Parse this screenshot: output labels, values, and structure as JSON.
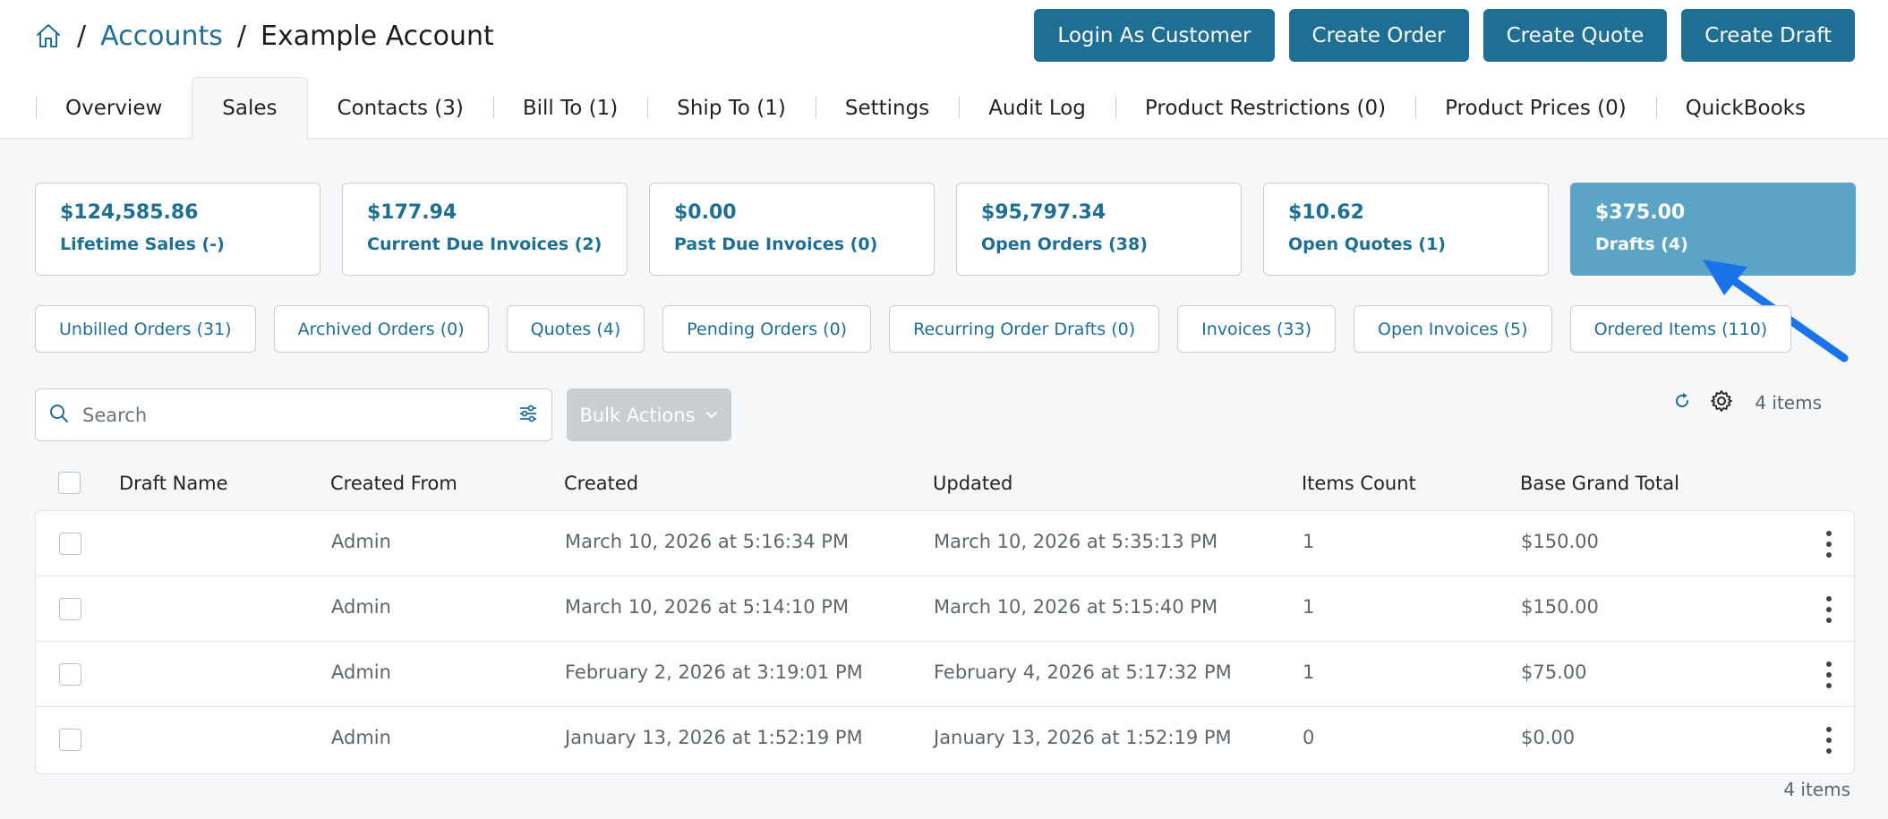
{
  "breadcrumb": {
    "home_icon": "home-icon",
    "accounts": "Accounts",
    "separator": "/",
    "current": "Example Account"
  },
  "actions": {
    "login": "Login As Customer",
    "create_order": "Create Order",
    "create_quote": "Create Quote",
    "create_draft": "Create Draft"
  },
  "tabs": [
    {
      "label": "Overview"
    },
    {
      "label": "Sales"
    },
    {
      "label": "Contacts (3)"
    },
    {
      "label": "Bill To (1)"
    },
    {
      "label": "Ship To (1)"
    },
    {
      "label": "Settings"
    },
    {
      "label": "Audit Log"
    },
    {
      "label": "Product Restrictions (0)"
    },
    {
      "label": "Product Prices (0)"
    },
    {
      "label": "QuickBooks"
    }
  ],
  "active_tab": "Sales",
  "stats": [
    {
      "amount": "$124,585.86",
      "label": "Lifetime Sales (-)"
    },
    {
      "amount": "$177.94",
      "label": "Current Due Invoices (2)"
    },
    {
      "amount": "$0.00",
      "label": "Past Due Invoices (0)"
    },
    {
      "amount": "$95,797.34",
      "label": "Open Orders (38)"
    },
    {
      "amount": "$10.62",
      "label": "Open Quotes (1)"
    },
    {
      "amount": "$375.00",
      "label": "Drafts (4)"
    }
  ],
  "active_stat": "Drafts (4)",
  "subtabs": [
    {
      "label": "Unbilled Orders (31)"
    },
    {
      "label": "Archived Orders (0)"
    },
    {
      "label": "Quotes (4)"
    },
    {
      "label": "Pending Orders (0)"
    },
    {
      "label": "Recurring Order Drafts (0)"
    },
    {
      "label": "Invoices (33)"
    },
    {
      "label": "Open Invoices (5)"
    },
    {
      "label": "Ordered Items (110)"
    }
  ],
  "toolbar": {
    "search_placeholder": "Search",
    "bulk_actions": "Bulk Actions",
    "item_count": "4 items"
  },
  "table": {
    "columns": [
      "Draft Name",
      "Created From",
      "Created",
      "Updated",
      "Items Count",
      "Base Grand Total"
    ],
    "rows": [
      {
        "draft_name": "",
        "created_from": "Admin",
        "created": "March 10, 2026 at 5:16:34 PM",
        "updated": "March 10, 2026 at 5:35:13 PM",
        "items_count": "1",
        "total": "$150.00"
      },
      {
        "draft_name": "",
        "created_from": "Admin",
        "created": "March 10, 2026 at 5:14:10 PM",
        "updated": "March 10, 2026 at 5:15:40 PM",
        "items_count": "1",
        "total": "$150.00"
      },
      {
        "draft_name": "",
        "created_from": "Admin",
        "created": "February 2, 2026 at 3:19:01 PM",
        "updated": "February 4, 2026 at 5:17:32 PM",
        "items_count": "1",
        "total": "$75.00"
      },
      {
        "draft_name": "",
        "created_from": "Admin",
        "created": "January 13, 2026 at 1:52:19 PM",
        "updated": "January 13, 2026 at 1:52:19 PM",
        "items_count": "0",
        "total": "$0.00"
      }
    ]
  },
  "footer": {
    "item_count": "4 items"
  },
  "colors": {
    "brand": "#1f6e94",
    "active_card": "#5ba4c5",
    "annotation_arrow": "#1a73e8"
  }
}
